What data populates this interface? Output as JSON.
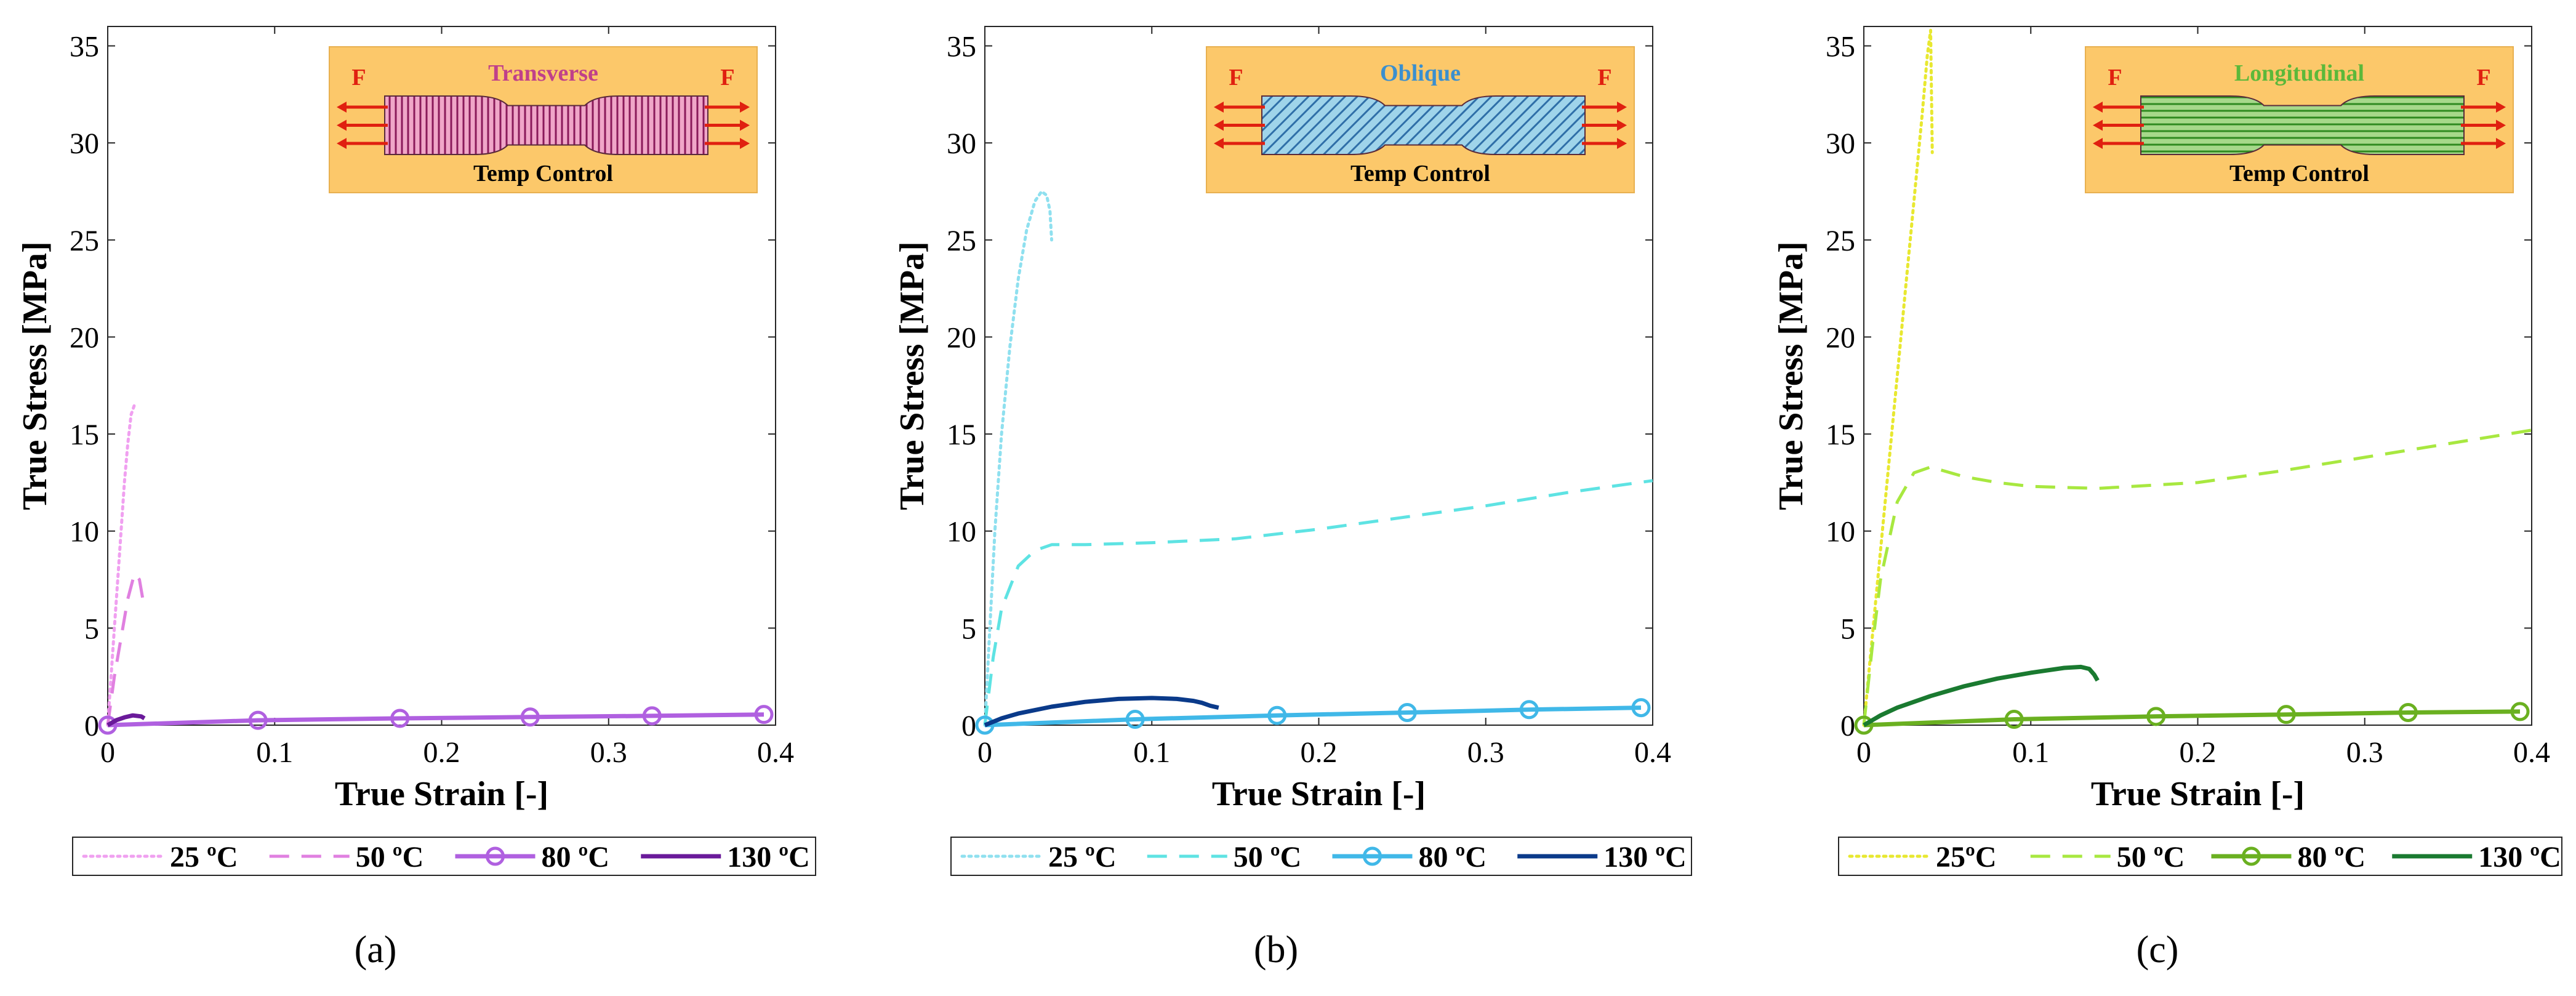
{
  "chart_data": [
    {
      "panel_label": "(a)",
      "type": "line",
      "xlabel": "True Strain [-]",
      "ylabel": "True Stress [MPa]",
      "xlim": [
        0,
        0.4
      ],
      "ylim": [
        0,
        36
      ],
      "xticks": [
        0,
        0.1,
        0.2,
        0.3,
        0.4
      ],
      "xtick_labels": [
        "0",
        "0.1",
        "0.2",
        "0.3",
        "0.4"
      ],
      "yticks": [
        0,
        5,
        10,
        15,
        20,
        25,
        30,
        35
      ],
      "ytick_labels": [
        "0",
        "5",
        "10",
        "15",
        "20",
        "25",
        "30",
        "35"
      ],
      "inset": {
        "title": "Transverse",
        "force_label": "F",
        "bottom_label": "Temp Control",
        "title_color": "#c0408a",
        "pattern": "transverse"
      },
      "series": [
        {
          "name": "25 ºC",
          "color": "#f0a0f0",
          "style": "dotted",
          "marker": false,
          "x": [
            0,
            0.002,
            0.004,
            0.006,
            0.008,
            0.01,
            0.012,
            0.014,
            0.016
          ],
          "y": [
            0,
            2.5,
            5,
            7.5,
            10,
            12.5,
            14.5,
            16,
            16.5
          ]
        },
        {
          "name": "50 ºC",
          "color": "#e080e0",
          "style": "dashed",
          "marker": false,
          "x": [
            0,
            0.004,
            0.008,
            0.012,
            0.016,
            0.019,
            0.021,
            0.022
          ],
          "y": [
            0,
            2.5,
            4.5,
            6.5,
            7.8,
            7.5,
            6.5,
            6
          ]
        },
        {
          "name": "80 ºC",
          "color": "#b060e0",
          "style": "solid",
          "marker": true,
          "x": [
            0,
            0.09,
            0.175,
            0.253,
            0.326,
            0.393
          ],
          "y": [
            0,
            0.25,
            0.35,
            0.42,
            0.48,
            0.55
          ]
        },
        {
          "name": "130 ºC",
          "color": "#6a1a9a",
          "style": "solid",
          "marker": false,
          "x": [
            0,
            0.005,
            0.01,
            0.015,
            0.02,
            0.022
          ],
          "y": [
            0,
            0.25,
            0.4,
            0.5,
            0.45,
            0.35
          ]
        }
      ],
      "legend": [
        "25 ºC",
        "50 ºC",
        "80 ºC",
        "130 ºC"
      ]
    },
    {
      "panel_label": "(b)",
      "type": "line",
      "xlabel": "True Strain [-]",
      "ylabel": "True Stress [MPa]",
      "xlim": [
        0,
        0.4
      ],
      "ylim": [
        0,
        36
      ],
      "xticks": [
        0,
        0.1,
        0.2,
        0.3,
        0.4
      ],
      "xtick_labels": [
        "0",
        "0.1",
        "0.2",
        "0.3",
        "0.4"
      ],
      "yticks": [
        0,
        5,
        10,
        15,
        20,
        25,
        30,
        35
      ],
      "ytick_labels": [
        "0",
        "5",
        "10",
        "15",
        "20",
        "25",
        "30",
        "35"
      ],
      "inset": {
        "title": "Oblique",
        "force_label": "F",
        "bottom_label": "Temp Control",
        "title_color": "#3a8fcf",
        "pattern": "oblique"
      },
      "series": [
        {
          "name": "25 ºC",
          "color": "#8fe0ef",
          "style": "dotted",
          "marker": false,
          "x": [
            0,
            0.003,
            0.006,
            0.01,
            0.015,
            0.02,
            0.025,
            0.03,
            0.034,
            0.037,
            0.039,
            0.04
          ],
          "y": [
            0,
            5,
            10,
            15,
            19.5,
            23,
            25.5,
            27,
            27.5,
            27.3,
            26.5,
            25
          ]
        },
        {
          "name": "50 ºC",
          "color": "#5ee3e3",
          "style": "dashed",
          "marker": false,
          "x": [
            0,
            0.005,
            0.01,
            0.02,
            0.03,
            0.04,
            0.06,
            0.1,
            0.15,
            0.2,
            0.25,
            0.3,
            0.35,
            0.4
          ],
          "y": [
            0,
            3.5,
            6,
            8.2,
            9,
            9.3,
            9.3,
            9.4,
            9.6,
            10.1,
            10.7,
            11.3,
            12,
            12.6
          ]
        },
        {
          "name": "80 ºC",
          "color": "#40b8e8",
          "style": "solid",
          "marker": true,
          "x": [
            0,
            0.09,
            0.175,
            0.253,
            0.326,
            0.393
          ],
          "y": [
            0,
            0.3,
            0.5,
            0.65,
            0.8,
            0.9
          ]
        },
        {
          "name": "130 ºC",
          "color": "#0a3a8a",
          "style": "solid",
          "marker": false,
          "x": [
            0,
            0.01,
            0.02,
            0.04,
            0.06,
            0.08,
            0.1,
            0.115,
            0.125,
            0.13,
            0.135,
            0.14
          ],
          "y": [
            0,
            0.35,
            0.6,
            0.95,
            1.2,
            1.35,
            1.4,
            1.35,
            1.25,
            1.15,
            1.0,
            0.9
          ]
        }
      ],
      "legend": [
        "25 ºC",
        "50 ºC",
        "80 ºC",
        "130 ºC"
      ]
    },
    {
      "panel_label": "(c)",
      "type": "line",
      "xlabel": "True Strain [-]",
      "ylabel": "True Stress [MPa]",
      "xlim": [
        0,
        0.4
      ],
      "ylim": [
        0,
        36
      ],
      "xticks": [
        0,
        0.1,
        0.2,
        0.3,
        0.4
      ],
      "xtick_labels": [
        "0",
        "0.1",
        "0.2",
        "0.3",
        "0.4"
      ],
      "yticks": [
        0,
        5,
        10,
        15,
        20,
        25,
        30,
        35
      ],
      "ytick_labels": [
        "0",
        "5",
        "10",
        "15",
        "20",
        "25",
        "30",
        "35"
      ],
      "inset": {
        "title": "Longitudinal",
        "force_label": "F",
        "bottom_label": "Temp Control",
        "title_color": "#5cb83a",
        "pattern": "longitudinal"
      },
      "series": [
        {
          "name": "25ºC",
          "color": "#e8e830",
          "style": "dotted",
          "marker": false,
          "x": [
            0,
            0.005,
            0.01,
            0.015,
            0.02,
            0.025,
            0.03,
            0.035,
            0.038,
            0.04,
            0.041
          ],
          "y": [
            0,
            4.5,
            9,
            13.5,
            18,
            22.5,
            27,
            31.5,
            34.5,
            35.8,
            29.5
          ]
        },
        {
          "name": "50 ºC",
          "color": "#a8e840",
          "style": "dashed",
          "marker": false,
          "x": [
            0,
            0.005,
            0.01,
            0.02,
            0.03,
            0.04,
            0.06,
            0.08,
            0.1,
            0.14,
            0.2,
            0.25,
            0.3,
            0.35,
            0.4
          ],
          "y": [
            0,
            4,
            7.5,
            11.5,
            13,
            13.3,
            12.8,
            12.5,
            12.3,
            12.2,
            12.5,
            13.1,
            13.8,
            14.5,
            15.2
          ]
        },
        {
          "name": "80 ºC",
          "color": "#6ab020",
          "style": "solid",
          "marker": true,
          "x": [
            0,
            0.09,
            0.175,
            0.253,
            0.326,
            0.393
          ],
          "y": [
            0,
            0.3,
            0.45,
            0.55,
            0.65,
            0.7
          ]
        },
        {
          "name": "130 ºC",
          "color": "#1a7a30",
          "style": "solid",
          "marker": false,
          "x": [
            0,
            0.01,
            0.02,
            0.04,
            0.06,
            0.08,
            0.1,
            0.12,
            0.13,
            0.135,
            0.138,
            0.14
          ],
          "y": [
            0,
            0.5,
            0.9,
            1.5,
            2.0,
            2.4,
            2.7,
            2.95,
            3.0,
            2.9,
            2.6,
            2.3
          ]
        }
      ],
      "legend": [
        "25ºC",
        "50 ºC",
        "80 ºC",
        "130 ºC"
      ]
    }
  ]
}
